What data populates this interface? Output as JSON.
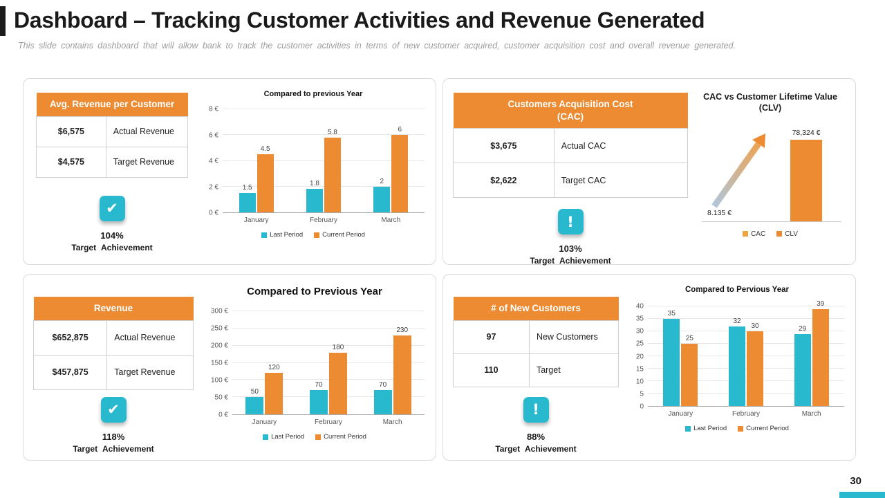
{
  "page": {
    "title": "Dashboard – Tracking Customer Activities and Revenue Generated",
    "subtitle": "This slide contains dashboard that will allow bank to track the customer activities in terms of new customer acquired, customer acquisition cost and overall revenue generated.",
    "page_number": "30"
  },
  "theme": {
    "orange": "#ED8B33",
    "teal": "#29B9CE",
    "cac_legend_gold": "#EBA43F",
    "title_accent": "#1B1B1B"
  },
  "panels": {
    "avg_revenue": {
      "header": "Avg. Revenue per Customer",
      "rows": [
        {
          "value": "$6,575",
          "label": "Actual Revenue"
        },
        {
          "value": "$4,575",
          "label": "Target Revenue"
        }
      ],
      "icon_glyph": "✔",
      "achievement_pct": "104%",
      "achievement_label": "Target Achievement"
    },
    "cac": {
      "header": "Customers Acquisition Cost (CAC)",
      "rows": [
        {
          "value": "$3,675",
          "label": "Actual CAC"
        },
        {
          "value": "$2,622",
          "label": "Target CAC"
        }
      ],
      "icon_glyph": "!",
      "achievement_pct": "103%",
      "achievement_label": "Target Achievement"
    },
    "revenue": {
      "header": "Revenue",
      "rows": [
        {
          "value": "$652,875",
          "label": "Actual Revenue"
        },
        {
          "value": "$457,875",
          "label": "Target Revenue"
        }
      ],
      "icon_glyph": "✔",
      "achievement_pct": "118%",
      "achievement_label": "Target Achievement"
    },
    "new_customers": {
      "header": "# of New Customers",
      "rows": [
        {
          "value": "97",
          "label": "New Customers"
        },
        {
          "value": "110",
          "label": "Target"
        }
      ],
      "icon_glyph": "!",
      "achievement_pct": "88%",
      "achievement_label": "Target Achievement"
    }
  },
  "chart_data": [
    {
      "id": "avg_revenue",
      "type": "bar",
      "title": "Compared to previous Year",
      "categories": [
        "January",
        "February",
        "March"
      ],
      "series": [
        {
          "name": "Last Period",
          "color": "#29B9CE",
          "values": [
            1.5,
            1.8,
            2
          ]
        },
        {
          "name": "Current Period",
          "color": "#ED8B33",
          "values": [
            4.5,
            5.8,
            6
          ]
        }
      ],
      "ylim": [
        0,
        8
      ],
      "ystep": 2,
      "ysuffix": " €",
      "grid": true,
      "legend_position": "bottom"
    },
    {
      "id": "cac_clv",
      "type": "arrow-bar",
      "title": "CAC vs Customer Lifetime Value (CLV)",
      "start_label": "8.135 €",
      "start_value": 8.135,
      "bar_label": "78,324 €",
      "bar_value": 78324,
      "legend": [
        {
          "name": "CAC",
          "color": "#EBA43F"
        },
        {
          "name": "CLV",
          "color": "#ED8B33"
        }
      ],
      "legend_position": "bottom"
    },
    {
      "id": "revenue",
      "type": "bar",
      "title": "Compared to Previous Year",
      "categories": [
        "January",
        "February",
        "March"
      ],
      "series": [
        {
          "name": "Last Period",
          "color": "#29B9CE",
          "values": [
            50,
            70,
            70
          ]
        },
        {
          "name": "Current Period",
          "color": "#ED8B33",
          "values": [
            120,
            180,
            230
          ]
        }
      ],
      "ylim": [
        0,
        300
      ],
      "ystep": 50,
      "ysuffix": " €",
      "grid": true,
      "legend_position": "bottom"
    },
    {
      "id": "new_customers",
      "type": "bar",
      "title": "Compared to Pervious Year",
      "categories": [
        "January",
        "February",
        "March"
      ],
      "series": [
        {
          "name": "Last Period",
          "color": "#29B9CE",
          "values": [
            35,
            32,
            29
          ]
        },
        {
          "name": "Current Period",
          "color": "#ED8B33",
          "values": [
            25,
            30,
            39
          ]
        }
      ],
      "ylim": [
        0,
        40
      ],
      "ystep": 5,
      "ysuffix": "",
      "grid": true,
      "legend_position": "bottom"
    }
  ]
}
